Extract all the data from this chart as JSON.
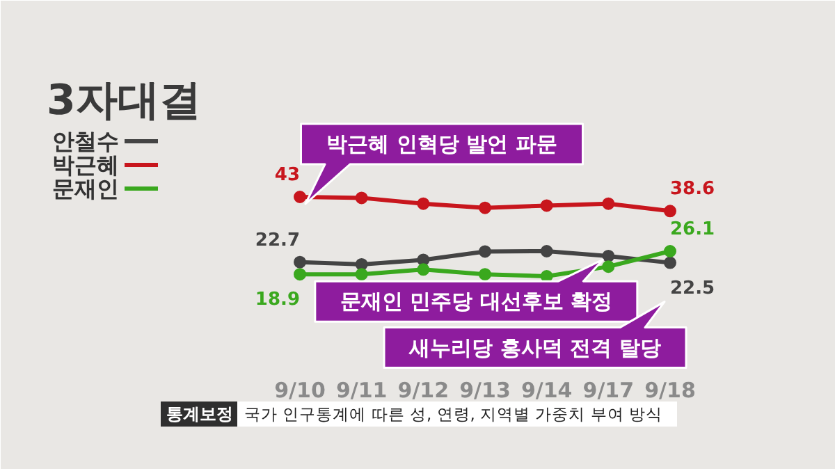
{
  "chart_data": {
    "type": "line",
    "title": "3자대결",
    "categories": [
      "9/10",
      "9/11",
      "9/12",
      "9/13",
      "9/14",
      "9/17",
      "9/18"
    ],
    "series": [
      {
        "name": "안철수",
        "color": "#444444",
        "values": [
          22.7,
          22.0,
          23.4,
          26.0,
          26.1,
          24.6,
          22.5
        ],
        "value_labels": [
          "22.7",
          null,
          null,
          null,
          null,
          null,
          "22.5"
        ]
      },
      {
        "name": "박근혜",
        "color": "#c8161d",
        "values": [
          43,
          42.7,
          40.9,
          39.6,
          40.3,
          40.9,
          38.6
        ],
        "value_labels": [
          "43",
          null,
          null,
          null,
          null,
          null,
          "38.6"
        ]
      },
      {
        "name": "문재인",
        "color": "#3aa81e",
        "values": [
          18.9,
          18.9,
          20.4,
          18.9,
          18.3,
          21.3,
          26.1
        ],
        "value_labels": [
          "18.9",
          null,
          null,
          null,
          null,
          null,
          "26.1"
        ]
      }
    ],
    "annotations": [
      {
        "text": "박근혜 인혁당 발언 파문",
        "x": "9/10",
        "y": 43
      },
      {
        "text": "문재인 민주당 대선후보 확정",
        "x": "9/17",
        "y": 21.3
      },
      "새누리당 홍사덕 전격 탈당",
      "통계보정",
      "국가 인구통계에 따른 성, 연령, 지역별 가중치 부여 방식"
    ],
    "legend": "top left",
    "marker": "circle",
    "line_style": "solid"
  }
}
